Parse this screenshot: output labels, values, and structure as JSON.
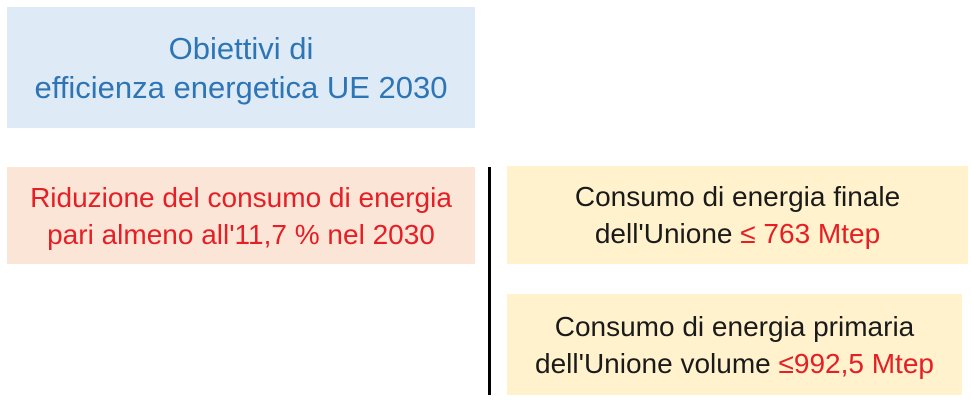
{
  "header": {
    "line1": "Obiettivi di",
    "line2": "efficienza energetica UE 2030"
  },
  "reduction_box": {
    "line1": "Riduzione del consumo di energia",
    "line2": "pari almeno all'11,7 % nel 2030"
  },
  "target_boxes": [
    {
      "line1": "Consumo di energia finale",
      "line2_black": "dell'Unione ",
      "line2_red": "≤ 763 Mtep"
    },
    {
      "line1": "Consumo di energia primaria",
      "line2_black": "dell'Unione volume ",
      "line2_red": "≤992,5 Mtep"
    }
  ],
  "colors": {
    "header_bg": "#deebf7",
    "header_text": "#2e75b6",
    "reduction_bg": "#fbe5d6",
    "target_bg": "#fff2cc",
    "red_text": "#e61e25",
    "black_text": "#1a1a1a",
    "divider": "#000000"
  }
}
